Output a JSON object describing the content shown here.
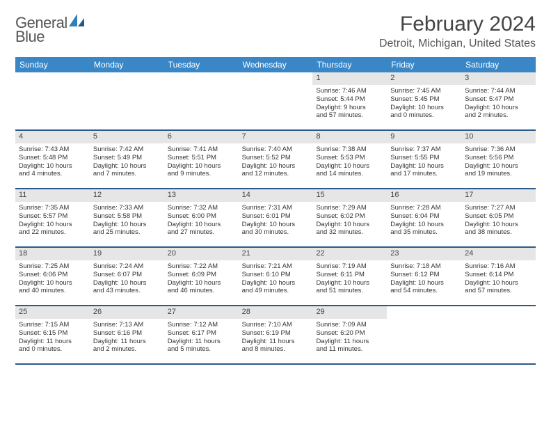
{
  "brand": {
    "name_part1": "General",
    "name_part2": "Blue"
  },
  "header": {
    "title": "February 2024",
    "location": "Detroit, Michigan, United States"
  },
  "colors": {
    "header_bg": "#3a87c8",
    "header_text": "#ffffff",
    "daynum_bg": "#e6e6e6",
    "week_border": "#2a5a8a",
    "text": "#333333",
    "logo_blue": "#2f7fb8"
  },
  "day_names": [
    "Sunday",
    "Monday",
    "Tuesday",
    "Wednesday",
    "Thursday",
    "Friday",
    "Saturday"
  ],
  "weeks": [
    [
      {
        "blank": true
      },
      {
        "blank": true
      },
      {
        "blank": true
      },
      {
        "blank": true
      },
      {
        "n": "1",
        "sr": "Sunrise: 7:46 AM",
        "ss": "Sunset: 5:44 PM",
        "d1": "Daylight: 9 hours",
        "d2": "and 57 minutes."
      },
      {
        "n": "2",
        "sr": "Sunrise: 7:45 AM",
        "ss": "Sunset: 5:45 PM",
        "d1": "Daylight: 10 hours",
        "d2": "and 0 minutes."
      },
      {
        "n": "3",
        "sr": "Sunrise: 7:44 AM",
        "ss": "Sunset: 5:47 PM",
        "d1": "Daylight: 10 hours",
        "d2": "and 2 minutes."
      }
    ],
    [
      {
        "n": "4",
        "sr": "Sunrise: 7:43 AM",
        "ss": "Sunset: 5:48 PM",
        "d1": "Daylight: 10 hours",
        "d2": "and 4 minutes."
      },
      {
        "n": "5",
        "sr": "Sunrise: 7:42 AM",
        "ss": "Sunset: 5:49 PM",
        "d1": "Daylight: 10 hours",
        "d2": "and 7 minutes."
      },
      {
        "n": "6",
        "sr": "Sunrise: 7:41 AM",
        "ss": "Sunset: 5:51 PM",
        "d1": "Daylight: 10 hours",
        "d2": "and 9 minutes."
      },
      {
        "n": "7",
        "sr": "Sunrise: 7:40 AM",
        "ss": "Sunset: 5:52 PM",
        "d1": "Daylight: 10 hours",
        "d2": "and 12 minutes."
      },
      {
        "n": "8",
        "sr": "Sunrise: 7:38 AM",
        "ss": "Sunset: 5:53 PM",
        "d1": "Daylight: 10 hours",
        "d2": "and 14 minutes."
      },
      {
        "n": "9",
        "sr": "Sunrise: 7:37 AM",
        "ss": "Sunset: 5:55 PM",
        "d1": "Daylight: 10 hours",
        "d2": "and 17 minutes."
      },
      {
        "n": "10",
        "sr": "Sunrise: 7:36 AM",
        "ss": "Sunset: 5:56 PM",
        "d1": "Daylight: 10 hours",
        "d2": "and 19 minutes."
      }
    ],
    [
      {
        "n": "11",
        "sr": "Sunrise: 7:35 AM",
        "ss": "Sunset: 5:57 PM",
        "d1": "Daylight: 10 hours",
        "d2": "and 22 minutes."
      },
      {
        "n": "12",
        "sr": "Sunrise: 7:33 AM",
        "ss": "Sunset: 5:58 PM",
        "d1": "Daylight: 10 hours",
        "d2": "and 25 minutes."
      },
      {
        "n": "13",
        "sr": "Sunrise: 7:32 AM",
        "ss": "Sunset: 6:00 PM",
        "d1": "Daylight: 10 hours",
        "d2": "and 27 minutes."
      },
      {
        "n": "14",
        "sr": "Sunrise: 7:31 AM",
        "ss": "Sunset: 6:01 PM",
        "d1": "Daylight: 10 hours",
        "d2": "and 30 minutes."
      },
      {
        "n": "15",
        "sr": "Sunrise: 7:29 AM",
        "ss": "Sunset: 6:02 PM",
        "d1": "Daylight: 10 hours",
        "d2": "and 32 minutes."
      },
      {
        "n": "16",
        "sr": "Sunrise: 7:28 AM",
        "ss": "Sunset: 6:04 PM",
        "d1": "Daylight: 10 hours",
        "d2": "and 35 minutes."
      },
      {
        "n": "17",
        "sr": "Sunrise: 7:27 AM",
        "ss": "Sunset: 6:05 PM",
        "d1": "Daylight: 10 hours",
        "d2": "and 38 minutes."
      }
    ],
    [
      {
        "n": "18",
        "sr": "Sunrise: 7:25 AM",
        "ss": "Sunset: 6:06 PM",
        "d1": "Daylight: 10 hours",
        "d2": "and 40 minutes."
      },
      {
        "n": "19",
        "sr": "Sunrise: 7:24 AM",
        "ss": "Sunset: 6:07 PM",
        "d1": "Daylight: 10 hours",
        "d2": "and 43 minutes."
      },
      {
        "n": "20",
        "sr": "Sunrise: 7:22 AM",
        "ss": "Sunset: 6:09 PM",
        "d1": "Daylight: 10 hours",
        "d2": "and 46 minutes."
      },
      {
        "n": "21",
        "sr": "Sunrise: 7:21 AM",
        "ss": "Sunset: 6:10 PM",
        "d1": "Daylight: 10 hours",
        "d2": "and 49 minutes."
      },
      {
        "n": "22",
        "sr": "Sunrise: 7:19 AM",
        "ss": "Sunset: 6:11 PM",
        "d1": "Daylight: 10 hours",
        "d2": "and 51 minutes."
      },
      {
        "n": "23",
        "sr": "Sunrise: 7:18 AM",
        "ss": "Sunset: 6:12 PM",
        "d1": "Daylight: 10 hours",
        "d2": "and 54 minutes."
      },
      {
        "n": "24",
        "sr": "Sunrise: 7:16 AM",
        "ss": "Sunset: 6:14 PM",
        "d1": "Daylight: 10 hours",
        "d2": "and 57 minutes."
      }
    ],
    [
      {
        "n": "25",
        "sr": "Sunrise: 7:15 AM",
        "ss": "Sunset: 6:15 PM",
        "d1": "Daylight: 11 hours",
        "d2": "and 0 minutes."
      },
      {
        "n": "26",
        "sr": "Sunrise: 7:13 AM",
        "ss": "Sunset: 6:16 PM",
        "d1": "Daylight: 11 hours",
        "d2": "and 2 minutes."
      },
      {
        "n": "27",
        "sr": "Sunrise: 7:12 AM",
        "ss": "Sunset: 6:17 PM",
        "d1": "Daylight: 11 hours",
        "d2": "and 5 minutes."
      },
      {
        "n": "28",
        "sr": "Sunrise: 7:10 AM",
        "ss": "Sunset: 6:19 PM",
        "d1": "Daylight: 11 hours",
        "d2": "and 8 minutes."
      },
      {
        "n": "29",
        "sr": "Sunrise: 7:09 AM",
        "ss": "Sunset: 6:20 PM",
        "d1": "Daylight: 11 hours",
        "d2": "and 11 minutes."
      },
      {
        "blank": true
      },
      {
        "blank": true
      }
    ]
  ]
}
